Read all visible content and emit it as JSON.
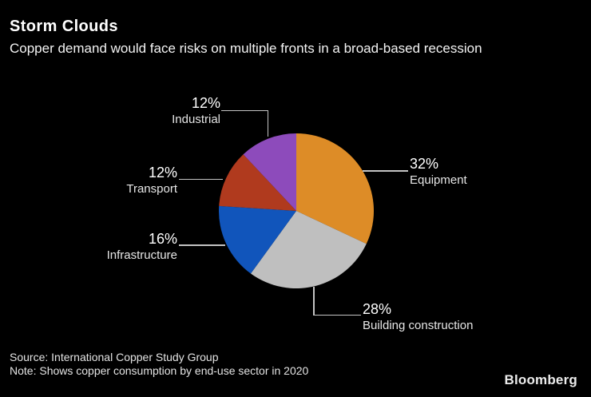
{
  "header": {
    "title": "Storm Clouds",
    "subtitle": "Copper demand would face risks on multiple fronts in a broad-based recession"
  },
  "chart_data": {
    "type": "pie",
    "title": "Storm Clouds",
    "subtitle": "Copper demand would face risks on multiple fronts in a broad-based recession",
    "unit": "%",
    "start_angle_deg": 0,
    "direction": "clockwise",
    "legend": "callout-labels-with-leader-lines",
    "background_color": "#000000",
    "leader_line_color": "#c4c4c4",
    "slices": [
      {
        "label": "Equipment",
        "value": 32,
        "display": "32%",
        "color": "#dd8c27"
      },
      {
        "label": "Building construction",
        "value": 28,
        "display": "28%",
        "color": "#bfbfbf"
      },
      {
        "label": "Infrastructure",
        "value": 16,
        "display": "16%",
        "color": "#1155bb"
      },
      {
        "label": "Transport",
        "value": 12,
        "display": "12%",
        "color": "#b03a1e"
      },
      {
        "label": "Industrial",
        "value": 12,
        "display": "12%",
        "color": "#8d4bbb"
      }
    ]
  },
  "footer": {
    "source": "Source: International Copper Study Group",
    "note": "Note: Shows copper consumption by end-use sector in 2020",
    "brand": "Bloomberg"
  }
}
